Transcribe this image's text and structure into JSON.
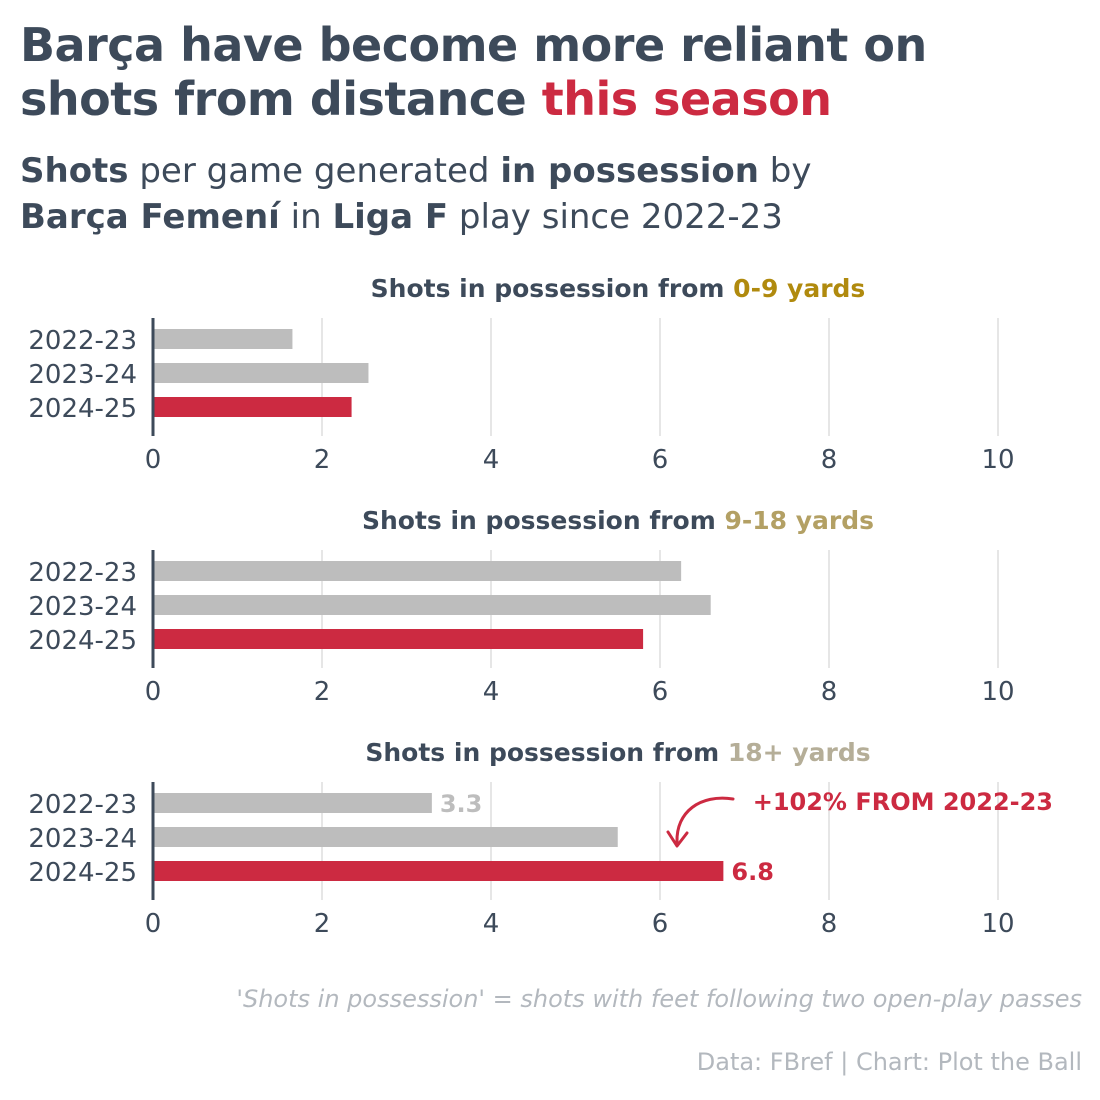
{
  "title": {
    "line1": "Barça have become more reliant on",
    "line2_plain": "shots from distance ",
    "line2_highlight": "this season"
  },
  "subtitle": {
    "b1": "Shots",
    "t1": " per game generated ",
    "b2": "in possession",
    "t2": " by",
    "b3": "Barça Femení",
    "t3": " in ",
    "b4": "Liga F",
    "t4": " play since 2022-23"
  },
  "colors": {
    "text": "#3d4a5a",
    "highlight": "#cc2a41",
    "bar_past": "#bdbdbd",
    "bar_current": "#cc2a41",
    "grid": "#e6e6e6",
    "range_0_9": "#b08a0e",
    "range_9_18": "#b3a064",
    "range_18plus": "#b5ae98",
    "muted": "#b3b8be"
  },
  "chart_data": [
    {
      "type": "bar",
      "orientation": "horizontal",
      "title_prefix": "Shots in possession from ",
      "title_range": "0-9 yards",
      "range_color": "#b08a0e",
      "categories": [
        "2022-23",
        "2023-24",
        "2024-25"
      ],
      "values": [
        1.65,
        2.55,
        2.35
      ],
      "xlim": [
        0,
        10
      ],
      "xticks": [
        0,
        2,
        4,
        6,
        8,
        10
      ],
      "grid": true
    },
    {
      "type": "bar",
      "orientation": "horizontal",
      "title_prefix": "Shots in possession from ",
      "title_range": "9-18 yards",
      "range_color": "#b3a064",
      "categories": [
        "2022-23",
        "2023-24",
        "2024-25"
      ],
      "values": [
        6.25,
        6.6,
        5.8
      ],
      "xlim": [
        0,
        10
      ],
      "xticks": [
        0,
        2,
        4,
        6,
        8,
        10
      ],
      "grid": true
    },
    {
      "type": "bar",
      "orientation": "horizontal",
      "title_prefix": "Shots in possession from ",
      "title_range": "18+ yards",
      "range_color": "#b5ae98",
      "categories": [
        "2022-23",
        "2023-24",
        "2024-25"
      ],
      "values": [
        3.3,
        5.5,
        6.75
      ],
      "data_labels": [
        "3.3",
        "",
        "6.8"
      ],
      "annotation": "+102% FROM 2022-23",
      "xlim": [
        0,
        10
      ],
      "xticks": [
        0,
        2,
        4,
        6,
        8,
        10
      ],
      "grid": true
    }
  ],
  "footnote": "'Shots in possession' = shots with feet following two open-play passes",
  "source": "Data: FBref | Chart: Plot the Ball"
}
